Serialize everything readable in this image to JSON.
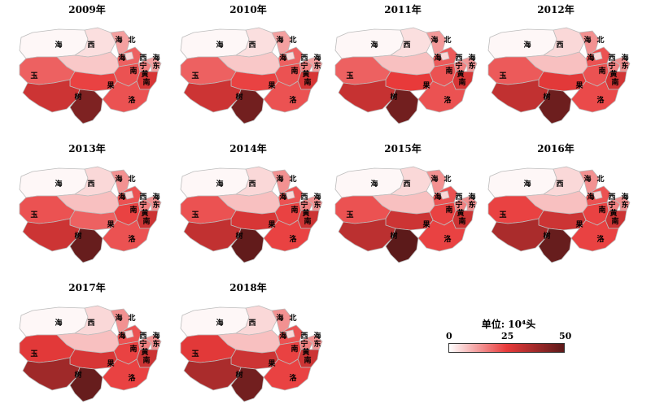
{
  "colors": {
    "low": "#ffffff",
    "mid": "#e83a3a",
    "high": "#5c1a1a",
    "border": "#bcbcbc"
  },
  "legend": {
    "title": "单位: 10⁴头",
    "min_label": "0",
    "mid_label": "25",
    "max_label": "50",
    "min": 0,
    "max": 50
  },
  "labels": {
    "haixi_1": "海",
    "haixi_2": "西",
    "yushu": "玉",
    "yushu_2": "树",
    "haibei_1": "海",
    "haibei_2": "北",
    "hainan_1": "海",
    "hainan_2": "南",
    "xining_1": "西",
    "xining_2": "宁",
    "haidong_1": "海",
    "haidong_2": "东",
    "huangnan_1": "黄",
    "huangnan_2": "南",
    "guoluo_1": "果",
    "guoluo_2": "洛"
  },
  "panels": [
    {
      "year": "2009年",
      "values": {
        "haixi_w": 1,
        "haixi_e": 7,
        "haixi_n": 4,
        "yushu_w": 20,
        "yushu_m": 24,
        "yushu_s": 30,
        "yushu_se": 44,
        "haibei_n": 12,
        "haibei_s": 20,
        "hainan": 22,
        "xining": 16,
        "haidong": 12,
        "huangnan": 28,
        "guoluo": 22,
        "qinghai_lake": 5
      }
    },
    {
      "year": "2010年",
      "values": {
        "haixi_w": 1,
        "haixi_e": 7,
        "haixi_n": 4,
        "yushu_w": 20,
        "yushu_m": 24,
        "yushu_s": 30,
        "yushu_se": 46,
        "haibei_n": 12,
        "haibei_s": 20,
        "hainan": 22,
        "xining": 16,
        "haidong": 12,
        "huangnan": 28,
        "guoluo": 22,
        "qinghai_lake": 5
      }
    },
    {
      "year": "2011年",
      "values": {
        "haixi_w": 1,
        "haixi_e": 8,
        "haixi_n": 4,
        "yushu_w": 20,
        "yushu_m": 25,
        "yushu_s": 31,
        "yushu_se": 46,
        "haibei_n": 13,
        "haibei_s": 21,
        "hainan": 22,
        "xining": 16,
        "haidong": 13,
        "huangnan": 28,
        "guoluo": 22,
        "qinghai_lake": 5
      }
    },
    {
      "year": "2012年",
      "values": {
        "haixi_w": 1,
        "haixi_e": 8,
        "haixi_n": 5,
        "yushu_w": 21,
        "yushu_m": 26,
        "yushu_s": 32,
        "yushu_se": 47,
        "haibei_n": 14,
        "haibei_s": 22,
        "hainan": 22,
        "xining": 16,
        "haidong": 14,
        "huangnan": 29,
        "guoluo": 23,
        "qinghai_lake": 5
      }
    },
    {
      "year": "2013年",
      "values": {
        "haixi_w": 1,
        "haixi_e": 8,
        "haixi_n": 5,
        "yushu_w": 22,
        "yushu_m": 20,
        "yushu_s": 30,
        "yushu_se": 48,
        "haibei_n": 14,
        "haibei_s": 22,
        "hainan": 24,
        "xining": 16,
        "haidong": 14,
        "huangnan": 30,
        "guoluo": 22,
        "qinghai_lake": 5
      }
    },
    {
      "year": "2014年",
      "values": {
        "haixi_w": 1,
        "haixi_e": 8,
        "haixi_n": 5,
        "yushu_w": 22,
        "yushu_m": 28,
        "yushu_s": 32,
        "yushu_se": 49,
        "haibei_n": 14,
        "haibei_s": 22,
        "hainan": 24,
        "xining": 16,
        "haidong": 14,
        "huangnan": 30,
        "guoluo": 24,
        "qinghai_lake": 5
      }
    },
    {
      "year": "2015年",
      "values": {
        "haixi_w": 1,
        "haixi_e": 8,
        "haixi_n": 5,
        "yushu_w": 22,
        "yushu_m": 30,
        "yushu_s": 33,
        "yushu_se": 50,
        "haibei_n": 14,
        "haibei_s": 22,
        "hainan": 24,
        "xining": 16,
        "haidong": 14,
        "huangnan": 30,
        "guoluo": 24,
        "qinghai_lake": 5
      }
    },
    {
      "year": "2016年",
      "values": {
        "haixi_w": 1,
        "haixi_e": 8,
        "haixi_n": 5,
        "yushu_w": 24,
        "yushu_m": 30,
        "yushu_s": 36,
        "yushu_se": 48,
        "haibei_n": 14,
        "haibei_s": 22,
        "hainan": 24,
        "xining": 16,
        "haidong": 14,
        "huangnan": 30,
        "guoluo": 24,
        "qinghai_lake": 5
      }
    },
    {
      "year": "2017年",
      "values": {
        "haixi_w": 1,
        "haixi_e": 8,
        "haixi_n": 5,
        "yushu_w": 26,
        "yushu_m": 28,
        "yushu_s": 38,
        "yushu_se": 48,
        "haibei_n": 14,
        "haibei_s": 22,
        "hainan": 24,
        "xining": 16,
        "haidong": 14,
        "huangnan": 30,
        "guoluo": 24,
        "qinghai_lake": 5
      }
    },
    {
      "year": "2018年",
      "values": {
        "haixi_w": 1,
        "haixi_e": 8,
        "haixi_n": 5,
        "yushu_w": 26,
        "yushu_m": 30,
        "yushu_s": 36,
        "yushu_se": 46,
        "haibei_n": 14,
        "haibei_s": 22,
        "hainan": 24,
        "xining": 16,
        "haidong": 14,
        "huangnan": 30,
        "guoluo": 24,
        "qinghai_lake": 5
      }
    }
  ]
}
